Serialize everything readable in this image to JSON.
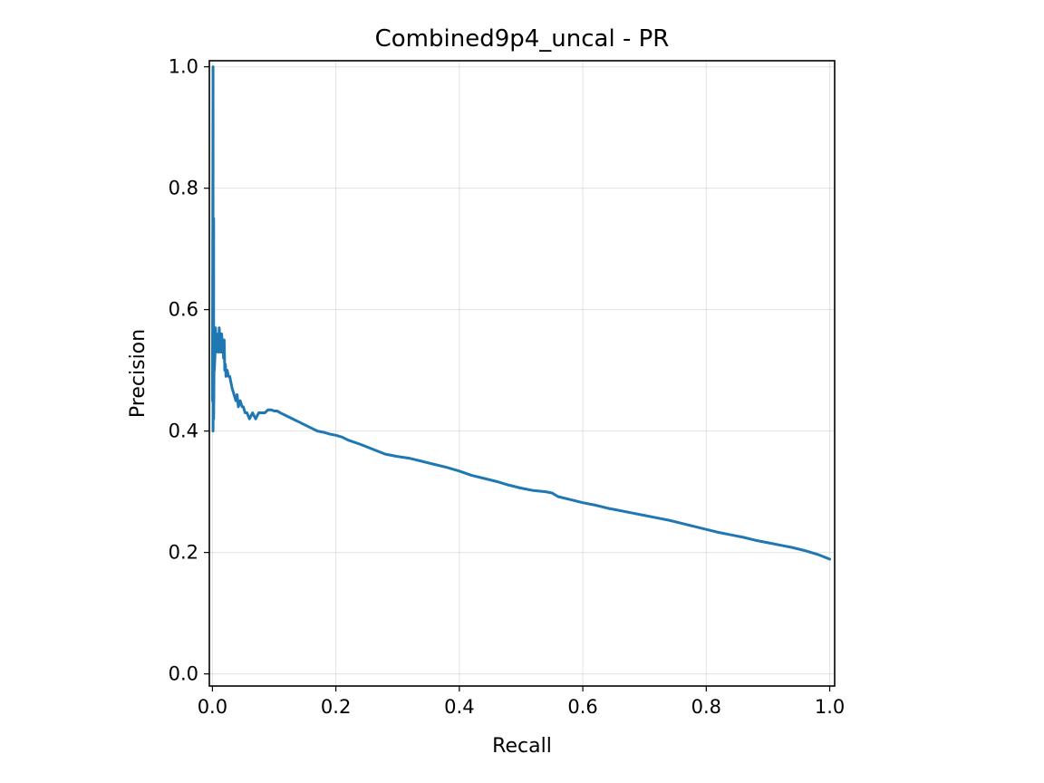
{
  "colors": {
    "series": "#1f77b4",
    "background": "#ffffff"
  },
  "chart_data": {
    "type": "line",
    "title": "Combined9p4_uncal - PR",
    "xlabel": "Recall",
    "ylabel": "Precision",
    "xlim": [
      -0.005,
      1.008
    ],
    "ylim": [
      -0.02,
      1.01
    ],
    "grid": true,
    "xticks": [
      0.0,
      0.2,
      0.4,
      0.6,
      0.8,
      1.0
    ],
    "yticks": [
      0.0,
      0.2,
      0.4,
      0.6,
      0.8,
      1.0
    ],
    "xtick_labels": [
      "0.0",
      "0.2",
      "0.4",
      "0.6",
      "0.8",
      "1.0"
    ],
    "ytick_labels": [
      "0.0",
      "0.2",
      "0.4",
      "0.6",
      "0.8",
      "1.0"
    ],
    "series": [
      {
        "name": "PR",
        "x": [
          0.0,
          0.001,
          0.001,
          0.001,
          0.002,
          0.002,
          0.003,
          0.003,
          0.004,
          0.005,
          0.006,
          0.007,
          0.008,
          0.009,
          0.01,
          0.011,
          0.012,
          0.013,
          0.014,
          0.015,
          0.016,
          0.017,
          0.018,
          0.019,
          0.02,
          0.021,
          0.022,
          0.024,
          0.026,
          0.028,
          0.03,
          0.032,
          0.035,
          0.038,
          0.04,
          0.042,
          0.045,
          0.048,
          0.05,
          0.053,
          0.056,
          0.06,
          0.065,
          0.07,
          0.075,
          0.08,
          0.085,
          0.09,
          0.095,
          0.1,
          0.105,
          0.11,
          0.12,
          0.13,
          0.14,
          0.15,
          0.16,
          0.17,
          0.18,
          0.19,
          0.2,
          0.21,
          0.22,
          0.24,
          0.26,
          0.28,
          0.3,
          0.32,
          0.34,
          0.36,
          0.38,
          0.4,
          0.42,
          0.44,
          0.46,
          0.48,
          0.5,
          0.52,
          0.54,
          0.55,
          0.56,
          0.58,
          0.6,
          0.62,
          0.64,
          0.66,
          0.68,
          0.7,
          0.72,
          0.74,
          0.76,
          0.78,
          0.8,
          0.82,
          0.84,
          0.86,
          0.88,
          0.9,
          0.92,
          0.94,
          0.96,
          0.98,
          1.0
        ],
        "y": [
          0.45,
          1.0,
          0.7,
          0.4,
          0.75,
          0.42,
          0.55,
          0.5,
          0.52,
          0.57,
          0.53,
          0.55,
          0.54,
          0.56,
          0.53,
          0.57,
          0.55,
          0.56,
          0.53,
          0.56,
          0.54,
          0.55,
          0.52,
          0.55,
          0.5,
          0.51,
          0.49,
          0.5,
          0.49,
          0.49,
          0.48,
          0.47,
          0.46,
          0.45,
          0.46,
          0.44,
          0.45,
          0.44,
          0.44,
          0.43,
          0.43,
          0.42,
          0.43,
          0.42,
          0.43,
          0.43,
          0.43,
          0.435,
          0.435,
          0.433,
          0.433,
          0.43,
          0.425,
          0.42,
          0.415,
          0.41,
          0.405,
          0.4,
          0.398,
          0.395,
          0.393,
          0.39,
          0.385,
          0.378,
          0.37,
          0.362,
          0.358,
          0.355,
          0.35,
          0.345,
          0.34,
          0.334,
          0.327,
          0.322,
          0.317,
          0.311,
          0.306,
          0.302,
          0.3,
          0.298,
          0.292,
          0.287,
          0.282,
          0.278,
          0.273,
          0.269,
          0.265,
          0.261,
          0.257,
          0.253,
          0.248,
          0.243,
          0.238,
          0.233,
          0.229,
          0.225,
          0.22,
          0.216,
          0.212,
          0.208,
          0.203,
          0.197,
          0.189
        ]
      }
    ]
  }
}
